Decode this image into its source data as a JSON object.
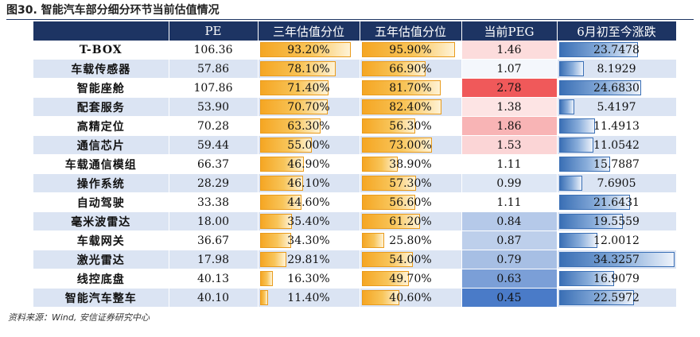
{
  "figure": {
    "title": "图30. 智能汽车部分细分环节当前估值情况",
    "source": "资料来源：Wind, 安信证券研究中心"
  },
  "table": {
    "headers": [
      "",
      "PE",
      "三年估值分位",
      "五年估值分位",
      "当前PEG",
      "6月初至今涨跌"
    ],
    "rows": [
      {
        "name": "T-BOX",
        "pe": "106.36",
        "pct3": "93.20%",
        "pct5": "95.90%",
        "peg": "1.46",
        "chg": "23.7478"
      },
      {
        "name": "车载传感器",
        "pe": "57.86",
        "pct3": "78.10%",
        "pct5": "66.90%",
        "peg": "1.07",
        "chg": "8.1929"
      },
      {
        "name": "智能座舱",
        "pe": "107.86",
        "pct3": "71.40%",
        "pct5": "81.70%",
        "peg": "2.78",
        "chg": "24.6830"
      },
      {
        "name": "配套服务",
        "pe": "53.90",
        "pct3": "70.70%",
        "pct5": "82.40%",
        "peg": "1.38",
        "chg": "5.4197"
      },
      {
        "name": "高精定位",
        "pe": "70.28",
        "pct3": "63.30%",
        "pct5": "56.30%",
        "peg": "1.86",
        "chg": "11.4913"
      },
      {
        "name": "通信芯片",
        "pe": "59.44",
        "pct3": "55.00%",
        "pct5": "73.00%",
        "peg": "1.53",
        "chg": "11.0542"
      },
      {
        "name": "车载通信模组",
        "pe": "66.37",
        "pct3": "46.90%",
        "pct5": "38.90%",
        "peg": "1.11",
        "chg": "15.7887"
      },
      {
        "name": "操作系统",
        "pe": "28.29",
        "pct3": "46.10%",
        "pct5": "57.30%",
        "peg": "0.99",
        "chg": "7.6905"
      },
      {
        "name": "自动驾驶",
        "pe": "33.38",
        "pct3": "44.60%",
        "pct5": "56.60%",
        "peg": "1.11",
        "chg": "21.6431"
      },
      {
        "name": "毫米波雷达",
        "pe": "18.00",
        "pct3": "35.40%",
        "pct5": "61.20%",
        "peg": "0.84",
        "chg": "19.5559"
      },
      {
        "name": "车载网关",
        "pe": "36.67",
        "pct3": "34.30%",
        "pct5": "25.80%",
        "peg": "0.87",
        "chg": "12.0012"
      },
      {
        "name": "激光雷达",
        "pe": "17.98",
        "pct3": "29.81%",
        "pct5": "54.00%",
        "peg": "0.79",
        "chg": "34.3257"
      },
      {
        "name": "线控底盘",
        "pe": "40.13",
        "pct3": "16.30%",
        "pct5": "49.70%",
        "peg": "0.63",
        "chg": "16.9079"
      },
      {
        "name": "智能汽车整车",
        "pe": "40.10",
        "pct3": "11.40%",
        "pct5": "40.60%",
        "peg": "0.45",
        "chg": "22.5972"
      }
    ]
  },
  "colors": {
    "header_bg": "#1d3463",
    "band_bg": "#dbe4f3",
    "bar_orange": "#f5a623",
    "bar_blue": "#3a6fb5",
    "peg_high": "#f0595a",
    "peg_mid": "#ffffff",
    "peg_low": "#4a7bc8"
  }
}
